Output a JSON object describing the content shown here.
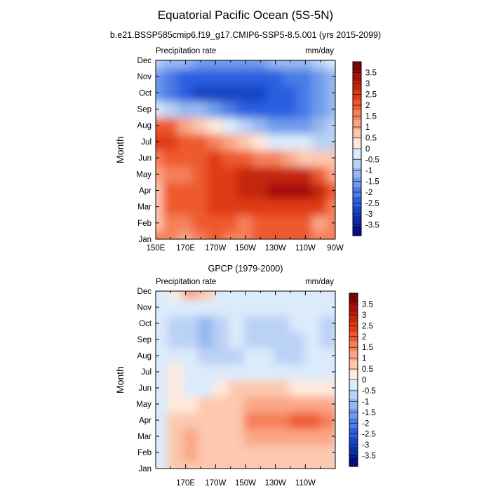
{
  "title": "Equatorial Pacific Ocean (5S-5N)",
  "panels": [
    {
      "heading": "b.e21.BSSP585cmip6.f19_g17.CMIP6-SSP5-8.5.001 (yrs 2015-2099)",
      "left_label": "Precipitation rate",
      "right_label": "mm/day",
      "ylabel": "Month",
      "y_ticks": [
        "Jan",
        "Feb",
        "Mar",
        "Apr",
        "May",
        "Jun",
        "Jul",
        "Aug",
        "Sep",
        "Oct",
        "Nov",
        "Dec"
      ],
      "x_ticks": [
        "150E",
        "170E",
        "170W",
        "150W",
        "130W",
        "110W",
        "90W"
      ]
    },
    {
      "heading": "GPCP (1979-2000)",
      "left_label": "Precipitation rate",
      "right_label": "mm/day",
      "ylabel": "Month",
      "y_ticks": [
        "Jan",
        "Feb",
        "Mar",
        "Apr",
        "May",
        "Jun",
        "Jul",
        "Aug",
        "Sep",
        "Oct",
        "Nov",
        "Dec"
      ],
      "x_ticks": [
        "",
        "170E",
        "170W",
        "150W",
        "130W",
        "110W",
        ""
      ]
    }
  ],
  "colorbar": {
    "labels": [
      "3.5",
      "3",
      "2.5",
      "2",
      "1.5",
      "1",
      "0.5",
      "0",
      "-0.5",
      "-1",
      "-1.5",
      "-2",
      "-2.5",
      "-3",
      "-3.5"
    ],
    "colors": [
      "#7a0403",
      "#a51008",
      "#c4260a",
      "#df3a12",
      "#ee5a2f",
      "#f6805a",
      "#faa685",
      "#fdc8ae",
      "#feeadb",
      "#dcebfb",
      "#bad2f6",
      "#96b8f1",
      "#6f9cec",
      "#4a7de6",
      "#2a5ee0",
      "#1545c4",
      "#0c2ba1",
      "#060e85"
    ]
  },
  "chart_data": [
    {
      "type": "heatmap",
      "title": "b.e21.BSSP585cmip6.f19_g17.CMIP6-SSP5-8.5.001 (yrs 2015-2099)",
      "ylabel": "Month",
      "x": [
        "150E",
        "160E",
        "170E",
        "180",
        "170W",
        "160W",
        "150W",
        "140W",
        "130W",
        "120W",
        "110W",
        "100W",
        "90W"
      ],
      "y": [
        "Jan",
        "Feb",
        "Mar",
        "Apr",
        "May",
        "Jun",
        "Jul",
        "Aug",
        "Sep",
        "Oct",
        "Nov",
        "Dec"
      ],
      "z": [
        [
          1.5,
          1.5,
          1.0,
          1.5,
          2.0,
          1.5,
          1.5,
          2.0,
          2.0,
          2.0,
          2.0,
          1.5,
          1.5
        ],
        [
          0.5,
          1.5,
          1.5,
          2.0,
          2.0,
          2.0,
          1.5,
          2.0,
          2.0,
          2.0,
          2.0,
          1.0,
          1.5
        ],
        [
          0.5,
          2.0,
          2.0,
          2.0,
          2.5,
          2.5,
          2.5,
          2.5,
          2.5,
          2.5,
          2.5,
          2.5,
          1.5
        ],
        [
          0.5,
          2.0,
          2.0,
          2.0,
          2.5,
          2.5,
          3.0,
          3.0,
          3.5,
          3.5,
          3.5,
          3.0,
          2.0
        ],
        [
          1.0,
          1.5,
          1.5,
          2.0,
          2.5,
          2.5,
          3.0,
          3.0,
          3.0,
          3.0,
          3.0,
          2.0,
          1.0
        ],
        [
          1.5,
          2.0,
          2.0,
          2.0,
          2.5,
          2.0,
          2.0,
          1.5,
          1.5,
          1.0,
          0.5,
          0.5,
          0.5
        ],
        [
          2.5,
          2.5,
          2.0,
          2.0,
          1.5,
          1.0,
          0.5,
          0.0,
          -0.5,
          -0.5,
          -0.5,
          -1.0,
          -1.0
        ],
        [
          2.0,
          2.0,
          1.0,
          0.5,
          0.0,
          -0.5,
          -1.0,
          -1.5,
          -2.0,
          -2.0,
          -2.0,
          -1.5,
          -1.0
        ],
        [
          -0.5,
          -1.0,
          -1.5,
          -1.5,
          -2.0,
          -2.5,
          -3.0,
          -3.0,
          -3.0,
          -3.0,
          -2.5,
          -2.0,
          -1.5
        ],
        [
          -2.0,
          -2.5,
          -3.0,
          -3.5,
          -3.5,
          -3.5,
          -3.5,
          -3.5,
          -3.0,
          -3.0,
          -2.5,
          -2.0,
          -1.5
        ],
        [
          -2.0,
          -2.5,
          -3.0,
          -3.0,
          -3.0,
          -3.0,
          -3.0,
          -3.0,
          -3.0,
          -2.5,
          -2.5,
          -2.0,
          -1.5
        ],
        [
          -1.0,
          -1.5,
          -1.5,
          -2.0,
          -2.0,
          -2.0,
          -2.0,
          -2.0,
          -1.5,
          -1.5,
          -1.5,
          -1.0,
          -0.5
        ]
      ],
      "colorbar_range": [
        -3.5,
        3.5
      ]
    },
    {
      "type": "heatmap",
      "title": "GPCP (1979-2000)",
      "ylabel": "Month",
      "x": [
        "160E",
        "170E",
        "180",
        "170W",
        "160W",
        "150W",
        "140W",
        "130W",
        "120W",
        "110W",
        "100W"
      ],
      "y": [
        "Jan",
        "Feb",
        "Mar",
        "Apr",
        "May",
        "Jun",
        "Jul",
        "Aug",
        "Sep",
        "Oct",
        "Nov",
        "Dec"
      ],
      "z": [
        [
          0.5,
          0.5,
          0.5,
          0.5,
          0.5,
          0.5,
          0.5,
          0.5,
          0.5,
          0.5,
          0.5
        ],
        [
          0.5,
          1.0,
          0.5,
          0.5,
          0.5,
          0.5,
          0.5,
          0.5,
          0.5,
          0.5,
          0.5
        ],
        [
          0.5,
          1.0,
          0.5,
          0.5,
          0.5,
          1.0,
          1.0,
          1.0,
          1.0,
          1.0,
          1.0
        ],
        [
          0.5,
          0.5,
          0.5,
          0.5,
          0.5,
          1.5,
          1.5,
          1.5,
          2.0,
          2.0,
          1.5
        ],
        [
          0.0,
          0.0,
          0.5,
          0.5,
          0.5,
          1.0,
          1.0,
          1.0,
          1.0,
          1.0,
          1.0
        ],
        [
          0.0,
          -0.5,
          -0.5,
          0.0,
          0.5,
          0.5,
          0.5,
          0.5,
          0.0,
          0.0,
          0.0
        ],
        [
          0.0,
          -0.5,
          -0.5,
          -0.5,
          -0.5,
          -0.5,
          -0.5,
          -0.5,
          -0.5,
          -0.5,
          -0.5
        ],
        [
          -0.5,
          -0.5,
          -1.0,
          -1.0,
          -1.0,
          -0.5,
          -0.5,
          -1.0,
          -1.0,
          -0.5,
          -0.5
        ],
        [
          -1.0,
          -1.0,
          -1.5,
          -1.0,
          -0.5,
          -1.0,
          -1.0,
          -1.0,
          -1.0,
          -0.5,
          -1.0
        ],
        [
          -1.0,
          -1.0,
          -1.5,
          -1.0,
          -0.5,
          -1.0,
          -1.0,
          -1.0,
          -0.5,
          -0.5,
          -1.0
        ],
        [
          -0.5,
          -0.5,
          -0.5,
          -0.5,
          -0.5,
          -0.5,
          -0.5,
          -0.5,
          -0.5,
          -0.5,
          -0.5
        ],
        [
          0.0,
          1.0,
          0.5,
          -0.5,
          -0.5,
          -0.5,
          -0.5,
          -0.5,
          -0.5,
          -0.5,
          -0.5
        ]
      ],
      "colorbar_range": [
        -3.5,
        3.5
      ]
    }
  ]
}
